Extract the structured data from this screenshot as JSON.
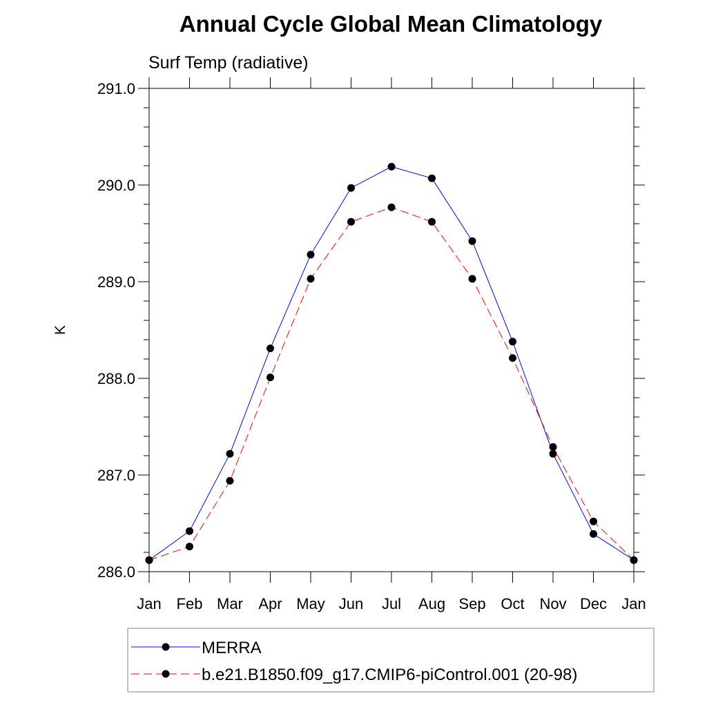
{
  "chart_data": {
    "type": "line",
    "title": "Annual Cycle Global Mean Climatology",
    "subtitle": "Surf Temp (radiative)",
    "xlabel": "",
    "ylabel": "K",
    "categories": [
      "Jan",
      "Feb",
      "Mar",
      "Apr",
      "May",
      "Jun",
      "Jul",
      "Aug",
      "Sep",
      "Oct",
      "Nov",
      "Dec",
      "Jan"
    ],
    "ylim": [
      286.0,
      291.0
    ],
    "yticks": [
      286.0,
      287.0,
      288.0,
      289.0,
      290.0,
      291.0
    ],
    "ytick_labels": [
      "286.0",
      "287.0",
      "288.0",
      "289.0",
      "290.0",
      "291.0"
    ],
    "grid": false,
    "legend_position": "bottom",
    "series": [
      {
        "name": "MERRA",
        "color": "#0000ff",
        "style": "solid",
        "values": [
          286.12,
          286.42,
          287.22,
          288.31,
          289.28,
          289.97,
          290.19,
          290.07,
          289.42,
          288.38,
          287.22,
          286.39,
          286.12
        ]
      },
      {
        "name": "b.e21.B1850.f09_g17.CMIP6-piControl.001 (20-98)",
        "color": "#ff0000",
        "style": "dashed",
        "values": [
          286.12,
          286.26,
          286.94,
          288.01,
          289.03,
          289.62,
          289.77,
          289.62,
          289.03,
          288.21,
          287.29,
          286.52,
          286.12
        ]
      }
    ]
  }
}
